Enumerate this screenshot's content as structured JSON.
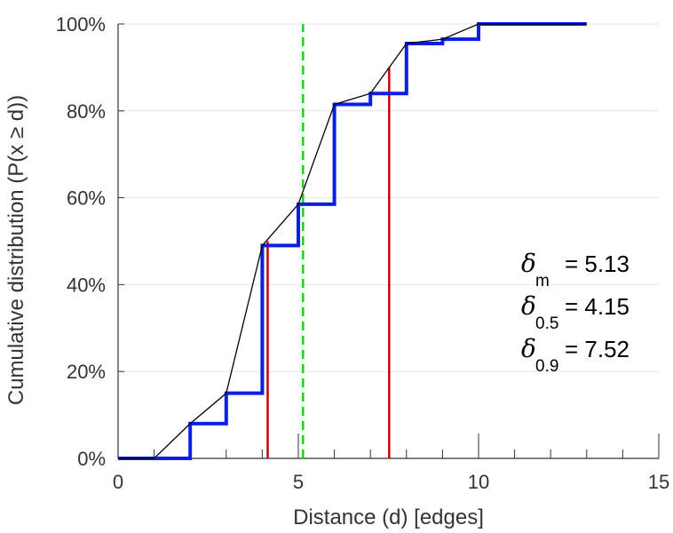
{
  "chart_data": {
    "type": "line",
    "xlabel": "Distance (d) [edges]",
    "ylabel": "Cumulative distribution (P(x ≥ d))",
    "xlim": [
      0,
      15
    ],
    "ylim": [
      0,
      100
    ],
    "x_ticks": [
      "0",
      "5",
      "10",
      "15"
    ],
    "y_ticks": [
      "0%",
      "20%",
      "40%",
      "60%",
      "80%",
      "100%"
    ],
    "grid": "horizontal",
    "series": [
      {
        "style": "step",
        "color": "#0a1ee6",
        "x": [
          0,
          1,
          2,
          3,
          4,
          5,
          6,
          7,
          8,
          9,
          10,
          11,
          12,
          13
        ],
        "y": [
          0,
          0,
          8,
          15,
          49,
          58.5,
          81.5,
          84,
          95.5,
          96.5,
          100,
          100,
          100,
          100
        ]
      },
      {
        "style": "line",
        "color": "#000000",
        "x": [
          0,
          1,
          2,
          3,
          4,
          5,
          6,
          7,
          8,
          9,
          10,
          11,
          12,
          13
        ],
        "y": [
          0,
          0,
          8,
          15,
          49,
          58.5,
          81.5,
          84,
          95.5,
          96.5,
          100,
          100,
          100,
          100
        ]
      }
    ],
    "vlines": [
      {
        "x": 4.15,
        "y_top": 50,
        "color": "#cc0000",
        "style": "solid"
      },
      {
        "x": 7.52,
        "y_top": 90,
        "color": "#cc0000",
        "style": "solid"
      },
      {
        "x": 5.13,
        "y_top": 100,
        "color": "#22cc22",
        "style": "dashed"
      }
    ],
    "annotations": [
      {
        "symbol": "δ",
        "sub": "m",
        "text": "= 5.13"
      },
      {
        "symbol": "δ",
        "sub": "0.5",
        "text": "= 4.15"
      },
      {
        "symbol": "δ",
        "sub": "0.9",
        "text": "= 7.52"
      }
    ]
  }
}
